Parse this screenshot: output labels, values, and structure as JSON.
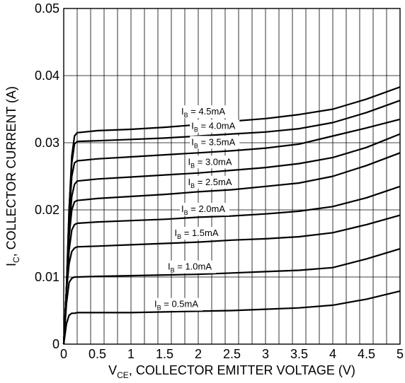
{
  "chart_data": {
    "type": "line",
    "xlabel": {
      "main": "V",
      "sub": "CE",
      "rest": ", COLLECTOR EMITTER VOLTAGE (V)"
    },
    "ylabel": {
      "main": "I",
      "sub": "C",
      "rest": ", COLLECTOR CURRENT (A)"
    },
    "xlim": [
      0,
      5
    ],
    "ylim": [
      0,
      0.05
    ],
    "x_ticks": [
      "0",
      "0.5",
      "1",
      "1.5",
      "2",
      "2.5",
      "3",
      "3.5",
      "4",
      "4.5",
      "5"
    ],
    "y_ticks": [
      "0",
      "0.01",
      "0.02",
      "0.03",
      "0.04",
      "0.05"
    ],
    "grid": true,
    "series": [
      {
        "name": "I_B = 4.5mA",
        "label_main": "I",
        "label_sub": "B",
        "label_rest": " = 4.5mA",
        "x": [
          0,
          0.04,
          0.08,
          0.12,
          0.16,
          0.2,
          0.5,
          1,
          1.5,
          2,
          2.5,
          3,
          3.5,
          4,
          4.5,
          5
        ],
        "y": [
          0,
          0.008,
          0.02,
          0.028,
          0.031,
          0.0315,
          0.0318,
          0.032,
          0.0323,
          0.0327,
          0.0332,
          0.0336,
          0.0342,
          0.035,
          0.0365,
          0.0383
        ]
      },
      {
        "name": "I_B = 4.0mA",
        "label_main": "I",
        "label_sub": "B",
        "label_rest": " = 4.0mA",
        "x": [
          0,
          0.04,
          0.08,
          0.12,
          0.16,
          0.2,
          0.5,
          1,
          1.5,
          2,
          2.5,
          3,
          3.5,
          4,
          4.5,
          5
        ],
        "y": [
          0,
          0.008,
          0.02,
          0.027,
          0.0298,
          0.0302,
          0.0303,
          0.0305,
          0.0307,
          0.031,
          0.0313,
          0.0316,
          0.0321,
          0.033,
          0.0345,
          0.0363
        ]
      },
      {
        "name": "I_B = 3.5mA",
        "label_main": "I",
        "label_sub": "B",
        "label_rest": " = 3.5mA",
        "x": [
          0,
          0.04,
          0.08,
          0.12,
          0.16,
          0.2,
          0.5,
          1,
          1.5,
          2,
          2.5,
          3,
          3.5,
          4,
          4.5,
          5
        ],
        "y": [
          0,
          0.008,
          0.019,
          0.025,
          0.027,
          0.0273,
          0.0276,
          0.0279,
          0.0282,
          0.0285,
          0.0288,
          0.0292,
          0.0298,
          0.031,
          0.0322,
          0.0335
        ]
      },
      {
        "name": "I_B = 3.0mA",
        "label_main": "I",
        "label_sub": "B",
        "label_rest": " = 3.0mA",
        "x": [
          0,
          0.04,
          0.08,
          0.12,
          0.16,
          0.2,
          0.5,
          1,
          1.5,
          2,
          2.5,
          3,
          3.5,
          4,
          4.5,
          5
        ],
        "y": [
          0,
          0.008,
          0.017,
          0.022,
          0.0238,
          0.0243,
          0.0246,
          0.0249,
          0.0252,
          0.0255,
          0.0259,
          0.0263,
          0.0269,
          0.0278,
          0.0293,
          0.0313
        ]
      },
      {
        "name": "I_B = 2.5mA",
        "label_main": "I",
        "label_sub": "B",
        "label_rest": " = 2.5mA",
        "x": [
          0,
          0.04,
          0.08,
          0.12,
          0.16,
          0.2,
          0.5,
          1,
          1.5,
          2,
          2.5,
          3,
          3.5,
          4,
          4.5,
          5
        ],
        "y": [
          0,
          0.008,
          0.016,
          0.02,
          0.0212,
          0.0214,
          0.0217,
          0.022,
          0.0223,
          0.0227,
          0.023,
          0.0235,
          0.024,
          0.025,
          0.0266,
          0.0285
        ]
      },
      {
        "name": "I_B = 2.0mA",
        "label_main": "I",
        "label_sub": "B",
        "label_rest": " = 2.0mA",
        "x": [
          0,
          0.04,
          0.08,
          0.12,
          0.16,
          0.2,
          0.5,
          1,
          1.5,
          2,
          2.5,
          3,
          3.5,
          4,
          4.5,
          5
        ],
        "y": [
          0,
          0.008,
          0.014,
          0.017,
          0.0178,
          0.018,
          0.0182,
          0.0184,
          0.0186,
          0.0189,
          0.0191,
          0.0194,
          0.0198,
          0.0205,
          0.0218,
          0.0235
        ]
      },
      {
        "name": "I_B = 1.5mA",
        "label_main": "I",
        "label_sub": "B",
        "label_rest": " = 1.5mA",
        "x": [
          0,
          0.04,
          0.08,
          0.12,
          0.16,
          0.2,
          0.5,
          1,
          1.5,
          2,
          2.5,
          3,
          3.5,
          4,
          4.5,
          5
        ],
        "y": [
          0,
          0.008,
          0.012,
          0.0138,
          0.0143,
          0.0145,
          0.0146,
          0.0148,
          0.015,
          0.0152,
          0.0155,
          0.0157,
          0.016,
          0.0166,
          0.0178,
          0.0192
        ]
      },
      {
        "name": "I_B = 1.0mA",
        "label_main": "I",
        "label_sub": "B",
        "label_rest": " = 1.0mA",
        "x": [
          0,
          0.04,
          0.08,
          0.12,
          0.16,
          0.2,
          0.5,
          1,
          1.5,
          2,
          2.5,
          3,
          3.5,
          4,
          4.5,
          5
        ],
        "y": [
          0,
          0.006,
          0.0092,
          0.0098,
          0.01,
          0.01,
          0.0101,
          0.0102,
          0.0103,
          0.0104,
          0.0106,
          0.0108,
          0.011,
          0.0114,
          0.0127,
          0.0142
        ]
      },
      {
        "name": "I_B = 0.5mA",
        "label_main": "I",
        "label_sub": "B",
        "label_rest": " = 0.5mA",
        "x": [
          0,
          0.04,
          0.08,
          0.12,
          0.16,
          0.2,
          0.5,
          1,
          1.5,
          2,
          2.5,
          3,
          3.5,
          4,
          4.5,
          5
        ],
        "y": [
          0,
          0.003,
          0.0043,
          0.0046,
          0.0046,
          0.0047,
          0.0047,
          0.0047,
          0.0048,
          0.0049,
          0.005,
          0.0052,
          0.0054,
          0.0058,
          0.0067,
          0.0079
        ]
      }
    ]
  }
}
